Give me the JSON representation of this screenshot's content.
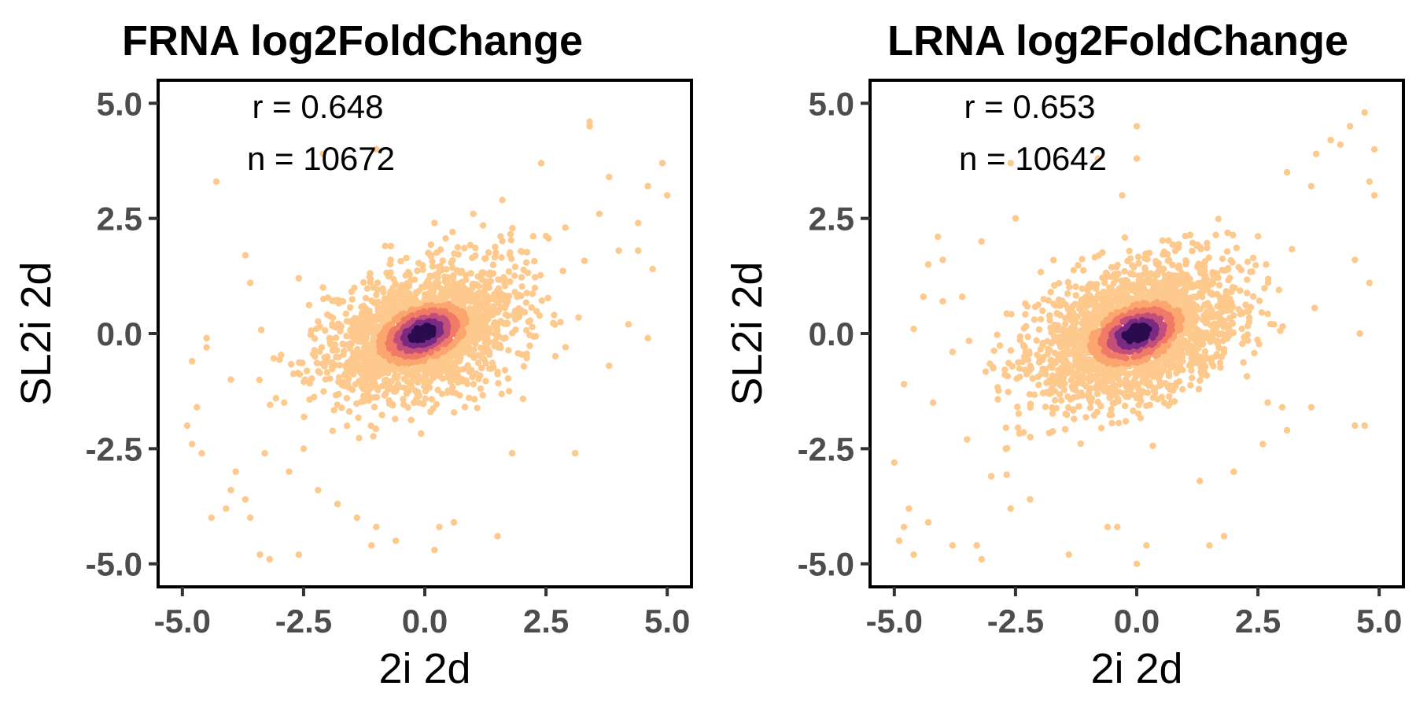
{
  "colors": {
    "density_low": "#fdc98d",
    "density_mid_low": "#fca66f",
    "density_mid": "#f07a67",
    "density_mid_high": "#c24f7b",
    "density_high": "#7a2a82",
    "density_peak": "#2a0c4e"
  },
  "chart_data": [
    {
      "type": "scatter",
      "title": "FRNA log2FoldChange",
      "xlabel": "2i 2d",
      "ylabel": "SL2i 2d",
      "xlim": [
        -5.5,
        5.5
      ],
      "ylim": [
        -5.5,
        5.5
      ],
      "xticks": [
        -5.0,
        -2.5,
        0.0,
        2.5,
        5.0
      ],
      "yticks": [
        -5.0,
        -2.5,
        0.0,
        2.5,
        5.0
      ],
      "xtick_labels": [
        "-5.0",
        "-2.5",
        "0.0",
        "2.5",
        "5.0"
      ],
      "ytick_labels": [
        "-5.0",
        "-2.5",
        "0.0",
        "2.5",
        "5.0"
      ],
      "grid": false,
      "color_encoding": "point density",
      "annotations": [
        "r = 0.648",
        "n = 10672"
      ],
      "r": 0.648,
      "n": 10672,
      "points": [
        [
          -4.3,
          3.3
        ],
        [
          -1.0,
          4.0
        ],
        [
          -2.1,
          3.9
        ],
        [
          3.4,
          4.6
        ],
        [
          3.4,
          4.5
        ],
        [
          2.4,
          3.7
        ],
        [
          3.8,
          3.4
        ],
        [
          4.6,
          3.2
        ],
        [
          4.9,
          3.7
        ],
        [
          5.0,
          3.0
        ],
        [
          -3.7,
          1.7
        ],
        [
          -3.6,
          1.1
        ],
        [
          -4.8,
          -0.6
        ],
        [
          -4.8,
          -2.4
        ],
        [
          -4.9,
          -2.0
        ],
        [
          -4.6,
          -2.6
        ],
        [
          -4.7,
          -1.6
        ],
        [
          -4.5,
          -0.3
        ],
        [
          -4.4,
          -4.0
        ],
        [
          -4.1,
          -3.8
        ],
        [
          -4.0,
          -3.4
        ],
        [
          -3.6,
          -4.0
        ],
        [
          -3.7,
          -3.6
        ],
        [
          -3.4,
          -4.8
        ],
        [
          -3.2,
          -4.9
        ],
        [
          -2.6,
          -4.8
        ],
        [
          -2.2,
          -3.4
        ],
        [
          -1.8,
          -3.7
        ],
        [
          -1.4,
          -4.0
        ],
        [
          -1.1,
          -4.6
        ],
        [
          -1.0,
          -4.2
        ],
        [
          -0.6,
          -4.5
        ],
        [
          0.3,
          -4.2
        ],
        [
          0.6,
          -4.1
        ],
        [
          1.5,
          -4.4
        ],
        [
          0.2,
          -4.7
        ],
        [
          1.8,
          -2.6
        ],
        [
          3.1,
          -2.6
        ],
        [
          3.8,
          -0.7
        ],
        [
          4.2,
          0.2
        ],
        [
          4.6,
          -0.1
        ],
        [
          4.7,
          1.4
        ],
        [
          4.4,
          1.8
        ],
        [
          4.0,
          1.8
        ],
        [
          4.4,
          2.4
        ],
        [
          3.6,
          2.6
        ],
        [
          2.9,
          2.3
        ],
        [
          -2.1,
          1.0
        ],
        [
          -2.6,
          1.2
        ],
        [
          -0.7,
          1.9
        ],
        [
          0.2,
          2.4
        ],
        [
          1.0,
          2.6
        ],
        [
          1.6,
          2.9
        ],
        [
          -4.5,
          -0.1
        ],
        [
          -4.0,
          -1.0
        ],
        [
          -3.9,
          -3.0
        ],
        [
          -3.3,
          -2.6
        ],
        [
          -2.8,
          -3.0
        ],
        [
          -2.5,
          -2.5
        ],
        [
          -2.9,
          -1.5
        ]
      ]
    },
    {
      "type": "scatter",
      "title": "LRNA log2FoldChange",
      "xlabel": "2i 2d",
      "ylabel": "SL2i 2d",
      "xlim": [
        -5.5,
        5.5
      ],
      "ylim": [
        -5.5,
        5.5
      ],
      "xticks": [
        -5.0,
        -2.5,
        0.0,
        2.5,
        5.0
      ],
      "yticks": [
        -5.0,
        -2.5,
        0.0,
        2.5,
        5.0
      ],
      "xtick_labels": [
        "-5.0",
        "-2.5",
        "0.0",
        "2.5",
        "5.0"
      ],
      "ytick_labels": [
        "-5.0",
        "-2.5",
        "0.0",
        "2.5",
        "5.0"
      ],
      "grid": false,
      "color_encoding": "point density",
      "annotations": [
        "r = 0.653",
        "n = 10642"
      ],
      "r": 0.653,
      "n": 10642,
      "points": [
        [
          -2.6,
          3.7
        ],
        [
          0.0,
          4.5
        ],
        [
          0.0,
          3.8
        ],
        [
          -0.8,
          3.8
        ],
        [
          -0.3,
          3.0
        ],
        [
          -2.5,
          2.5
        ],
        [
          -4.1,
          2.1
        ],
        [
          -4.3,
          1.5
        ],
        [
          -4.0,
          1.6
        ],
        [
          -3.2,
          2.0
        ],
        [
          3.1,
          3.5
        ],
        [
          3.6,
          3.2
        ],
        [
          3.7,
          3.9
        ],
        [
          4.0,
          4.2
        ],
        [
          4.2,
          4.1
        ],
        [
          4.4,
          4.5
        ],
        [
          4.7,
          4.8
        ],
        [
          4.9,
          4.0
        ],
        [
          4.8,
          3.3
        ],
        [
          4.9,
          3.0
        ],
        [
          4.5,
          1.6
        ],
        [
          4.8,
          1.1
        ],
        [
          4.6,
          0.0
        ],
        [
          4.7,
          -2.0
        ],
        [
          4.5,
          -2.0
        ],
        [
          3.0,
          -1.6
        ],
        [
          2.7,
          -1.5
        ],
        [
          3.6,
          -1.6
        ],
        [
          3.1,
          -2.1
        ],
        [
          2.6,
          -2.4
        ],
        [
          -5.0,
          -2.8
        ],
        [
          -4.9,
          -4.5
        ],
        [
          -4.8,
          -4.2
        ],
        [
          -4.7,
          -3.8
        ],
        [
          -4.6,
          -4.8
        ],
        [
          -4.3,
          -4.1
        ],
        [
          -3.8,
          -4.6
        ],
        [
          -3.2,
          -4.9
        ],
        [
          -3.3,
          -4.6
        ],
        [
          -2.6,
          -3.8
        ],
        [
          -2.2,
          -3.6
        ],
        [
          -1.4,
          -4.8
        ],
        [
          -0.6,
          -4.2
        ],
        [
          -0.4,
          -4.2
        ],
        [
          0.0,
          -5.0
        ],
        [
          0.2,
          -4.6
        ],
        [
          1.3,
          -3.2
        ],
        [
          1.5,
          -4.6
        ],
        [
          1.8,
          -4.4
        ],
        [
          2.0,
          -3.0
        ],
        [
          -4.6,
          0.1
        ],
        [
          -4.0,
          0.7
        ],
        [
          -4.4,
          0.8
        ],
        [
          -3.6,
          0.8
        ],
        [
          -4.8,
          -1.1
        ],
        [
          -4.2,
          -1.5
        ],
        [
          -3.8,
          -0.4
        ],
        [
          -3.5,
          -2.3
        ],
        [
          -3.0,
          -3.1
        ],
        [
          -2.7,
          -2.5
        ]
      ]
    }
  ]
}
